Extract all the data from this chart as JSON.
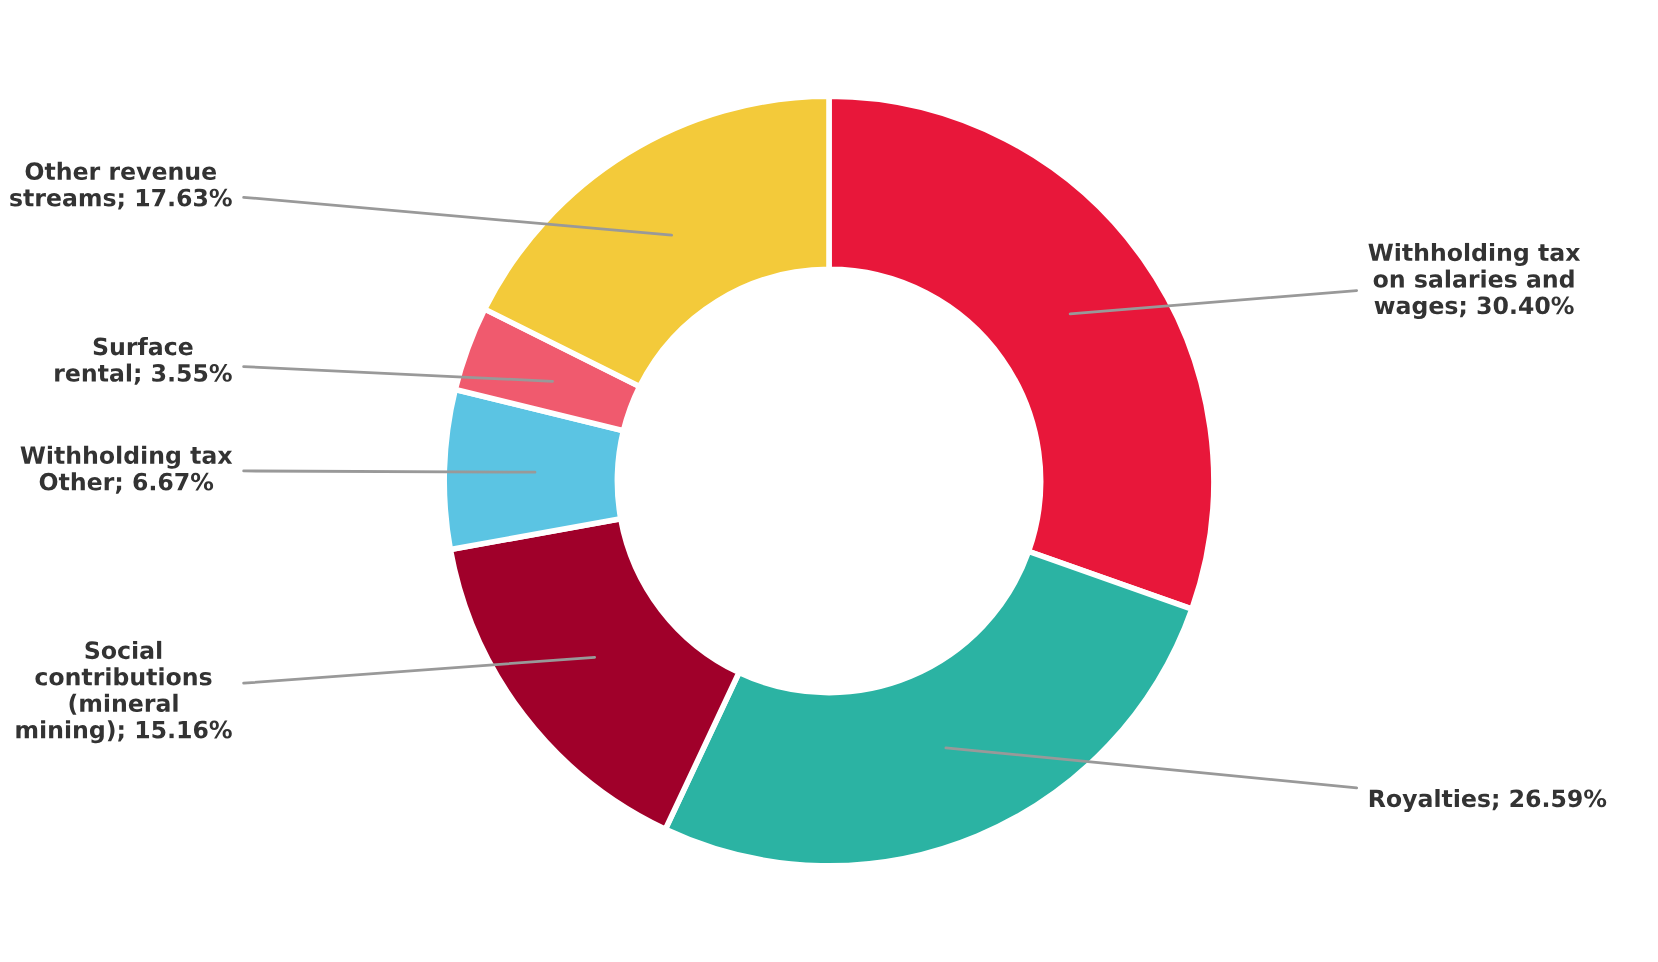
{
  "chart_data": {
    "type": "donut",
    "categories": [
      "Withholding tax on salaries and wages",
      "Royalties",
      "Social contributions (mineral mining)",
      "Withholding tax Other",
      "Surface rental",
      "Other revenue streams"
    ],
    "values": [
      30.4,
      26.59,
      15.16,
      6.67,
      3.55,
      17.63
    ],
    "value_labels": [
      "30.40%",
      "26.59%",
      "15.16%",
      "6.67%",
      "3.55%",
      "17.63%"
    ],
    "colors": [
      "#e8173a",
      "#2bb3a3",
      "#a0002a",
      "#5bc4e3",
      "#f05a6e",
      "#f3ca3a"
    ],
    "legend": false
  }
}
